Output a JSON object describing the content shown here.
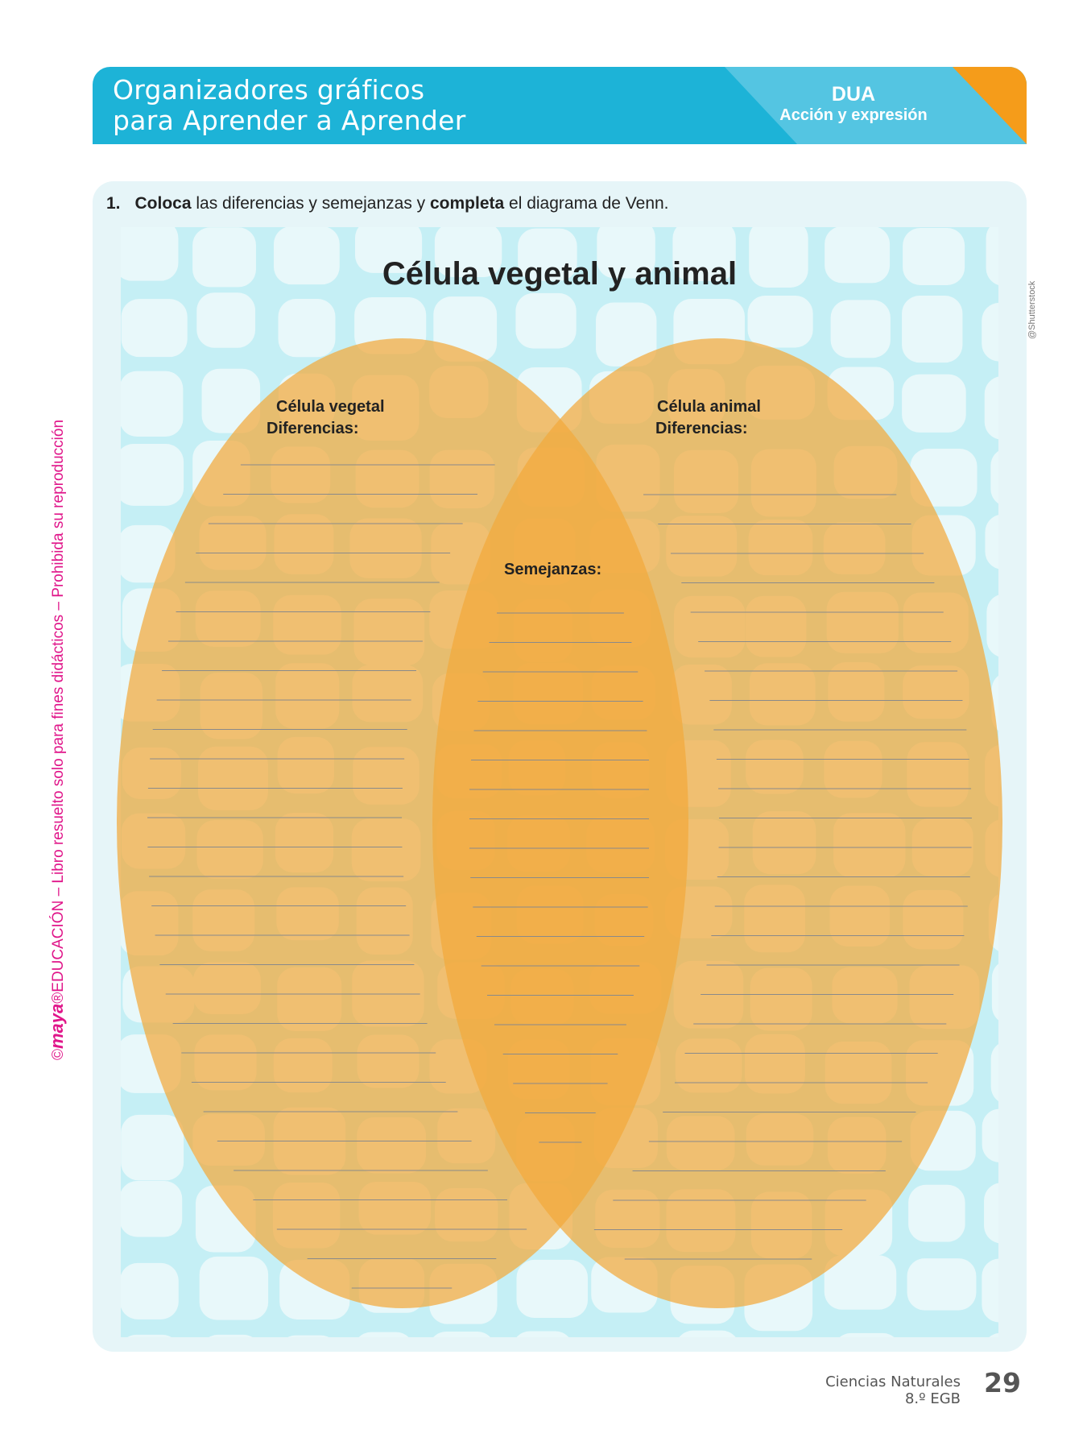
{
  "header": {
    "title_line1": "Organizadores gráficos",
    "title_line2": "para Aprender a Aprender",
    "badge_title": "DUA",
    "badge_subtitle": "Acción y expresión",
    "colors": {
      "main": "#1db3d7",
      "badge": "#54c5e2",
      "corner": "#f59c1a"
    }
  },
  "activity": {
    "number": "1.",
    "verb1": "Coloca",
    "text1": " las diferencias y semejanzas y ",
    "verb2": "completa",
    "text2": " el diagrama de Venn."
  },
  "venn": {
    "title": "Célula vegetal y animal",
    "left": {
      "label": "Célula vegetal",
      "sublabel": "Diferencias:",
      "lines": 32
    },
    "right": {
      "label": "Célula animal",
      "sublabel": "Diferencias:",
      "lines": 27
    },
    "middle": {
      "label": "Semejanzas:",
      "lines": 20
    },
    "fill": "#f2a93b"
  },
  "credit": "@Shutterstock",
  "side_notice": {
    "prefix": "©",
    "brand": "maya",
    "rest": "®EDUCACIÓN – Libro resuelto solo para fines didácticos – Prohibida su reproducción"
  },
  "footer": {
    "subject": "Ciencias Naturales",
    "grade": "8.º EGB",
    "page": "29"
  }
}
